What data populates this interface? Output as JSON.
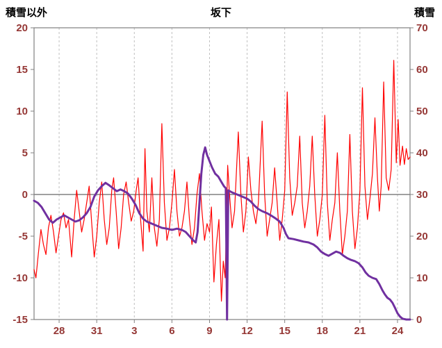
{
  "chart_data": {
    "type": "line",
    "title": "坂下",
    "left_axis": {
      "label": "積雪以外",
      "range": [
        -15,
        20
      ],
      "tick_values": [
        20,
        15,
        10,
        5,
        0,
        -5,
        -10,
        -15
      ],
      "ticks": [
        "20",
        "15",
        "10",
        "5",
        "0",
        "-5",
        "-10",
        "-15"
      ]
    },
    "right_axis": {
      "label": "積雪",
      "range": [
        0,
        70
      ],
      "tick_values": [
        70,
        60,
        50,
        40,
        30,
        20,
        10,
        0
      ],
      "ticks": [
        "70",
        "60",
        "50",
        "40",
        "30",
        "20",
        "10",
        "0"
      ]
    },
    "x_axis": {
      "range": [
        0,
        30
      ],
      "tick_values": [
        2,
        5,
        8,
        11,
        14,
        17,
        20,
        23,
        26,
        29
      ],
      "tick_labels": [
        "28",
        "31",
        "3",
        "6",
        "9",
        "12",
        "15",
        "18",
        "21",
        "24"
      ],
      "gridlines": "dashed-vertical"
    },
    "colors": {
      "tick_label": "#953735",
      "grid": "#BFBFBF",
      "axis_line": "#808080",
      "zero_line": "#808080",
      "background": "#FFFFFF"
    },
    "series": [
      {
        "name": "red-line",
        "axis": "left",
        "color": "#FF0000",
        "stroke_width": 1.2,
        "points": [
          [
            0,
            -9
          ],
          [
            0.15,
            -10
          ],
          [
            0.35,
            -7
          ],
          [
            0.55,
            -4.2
          ],
          [
            0.75,
            -6
          ],
          [
            0.95,
            -7.2
          ],
          [
            1.15,
            -4
          ],
          [
            1.35,
            -2.5
          ],
          [
            1.55,
            -4.5
          ],
          [
            1.75,
            -7
          ],
          [
            1.95,
            -5
          ],
          [
            2.15,
            -3
          ],
          [
            2.35,
            -2.2
          ],
          [
            2.55,
            -4
          ],
          [
            2.75,
            -3
          ],
          [
            3.0,
            -7.5
          ],
          [
            3.2,
            -3
          ],
          [
            3.4,
            0.5
          ],
          [
            3.6,
            -2
          ],
          [
            3.8,
            -4.5
          ],
          [
            4.0,
            -3
          ],
          [
            4.2,
            -1
          ],
          [
            4.4,
            1
          ],
          [
            4.6,
            -3.5
          ],
          [
            4.8,
            -7.5
          ],
          [
            5.0,
            -5
          ],
          [
            5.2,
            -1
          ],
          [
            5.4,
            1.5
          ],
          [
            5.6,
            -3
          ],
          [
            5.8,
            -6
          ],
          [
            6.0,
            -4
          ],
          [
            6.2,
            0.5
          ],
          [
            6.35,
            2
          ],
          [
            6.55,
            -2
          ],
          [
            6.75,
            -6.5
          ],
          [
            6.95,
            -4
          ],
          [
            7.15,
            0
          ],
          [
            7.35,
            1.5
          ],
          [
            7.55,
            -1
          ],
          [
            7.75,
            -3.2
          ],
          [
            7.95,
            -2
          ],
          [
            8.15,
            0.5
          ],
          [
            8.3,
            2
          ],
          [
            8.5,
            -3
          ],
          [
            8.7,
            -6.8
          ],
          [
            8.85,
            5.5
          ],
          [
            9.0,
            -2
          ],
          [
            9.2,
            -4.5
          ],
          [
            9.4,
            2
          ],
          [
            9.6,
            -4
          ],
          [
            9.8,
            -6.2
          ],
          [
            10.0,
            -3
          ],
          [
            10.2,
            8.5
          ],
          [
            10.4,
            -1
          ],
          [
            10.6,
            -5.5
          ],
          [
            10.8,
            -4
          ],
          [
            11.0,
            -1
          ],
          [
            11.2,
            3
          ],
          [
            11.4,
            -2
          ],
          [
            11.6,
            -5
          ],
          [
            11.8,
            -4
          ],
          [
            12.0,
            -2
          ],
          [
            12.2,
            1.5
          ],
          [
            12.4,
            -3
          ],
          [
            12.6,
            -6
          ],
          [
            12.8,
            -4
          ],
          [
            13.0,
            0
          ],
          [
            13.2,
            2.5
          ],
          [
            13.4,
            -2
          ],
          [
            13.6,
            -5.5
          ],
          [
            13.8,
            -3.5
          ],
          [
            14.0,
            -4.5
          ],
          [
            14.15,
            -1.5
          ],
          [
            14.35,
            -10.5
          ],
          [
            14.55,
            -6
          ],
          [
            14.75,
            -3
          ],
          [
            14.95,
            -12.8
          ],
          [
            15.1,
            -8
          ],
          [
            15.25,
            -10
          ],
          [
            15.45,
            3.5
          ],
          [
            15.6,
            0
          ],
          [
            15.8,
            -4
          ],
          [
            16.0,
            -2
          ],
          [
            16.3,
            7.5
          ],
          [
            16.5,
            0
          ],
          [
            16.7,
            -4.5
          ],
          [
            16.9,
            -2
          ],
          [
            17.1,
            4.5
          ],
          [
            17.3,
            0.5
          ],
          [
            17.5,
            -2
          ],
          [
            17.7,
            -3.5
          ],
          [
            17.9,
            -1
          ],
          [
            18.2,
            8.8
          ],
          [
            18.4,
            0
          ],
          [
            18.6,
            -5
          ],
          [
            18.8,
            -3
          ],
          [
            19.0,
            -1
          ],
          [
            19.2,
            3.2
          ],
          [
            19.4,
            -1
          ],
          [
            19.6,
            -5.5
          ],
          [
            19.8,
            -3
          ],
          [
            20.0,
            0.5
          ],
          [
            20.2,
            12.3
          ],
          [
            20.4,
            2
          ],
          [
            20.6,
            -2.5
          ],
          [
            20.8,
            -1
          ],
          [
            21.0,
            1
          ],
          [
            21.2,
            7
          ],
          [
            21.4,
            -1
          ],
          [
            21.6,
            -4
          ],
          [
            21.8,
            -2
          ],
          [
            22.0,
            1
          ],
          [
            22.2,
            7
          ],
          [
            22.4,
            0
          ],
          [
            22.6,
            -5
          ],
          [
            22.8,
            -3
          ],
          [
            23.0,
            0
          ],
          [
            23.2,
            9.5
          ],
          [
            23.4,
            -1
          ],
          [
            23.6,
            -5.5
          ],
          [
            23.8,
            -3
          ],
          [
            24.0,
            -1
          ],
          [
            24.2,
            5
          ],
          [
            24.4,
            -2
          ],
          [
            24.6,
            -7.2
          ],
          [
            24.8,
            -5
          ],
          [
            25.0,
            -2
          ],
          [
            25.2,
            7.2
          ],
          [
            25.4,
            -2
          ],
          [
            25.6,
            -6.5
          ],
          [
            25.8,
            -4
          ],
          [
            26.0,
            0.5
          ],
          [
            26.2,
            12.8
          ],
          [
            26.4,
            1
          ],
          [
            26.6,
            -3
          ],
          [
            26.8,
            -0.5
          ],
          [
            27.0,
            2.5
          ],
          [
            27.2,
            9.2
          ],
          [
            27.4,
            2
          ],
          [
            27.55,
            -2
          ],
          [
            27.7,
            1
          ],
          [
            27.9,
            13.5
          ],
          [
            28.1,
            2
          ],
          [
            28.3,
            0.5
          ],
          [
            28.5,
            3
          ],
          [
            28.7,
            16.1
          ],
          [
            28.9,
            3.8
          ],
          [
            29.05,
            9
          ],
          [
            29.2,
            3.5
          ],
          [
            29.4,
            5.8
          ],
          [
            29.55,
            3.6
          ],
          [
            29.7,
            5.5
          ],
          [
            29.85,
            4.2
          ],
          [
            30,
            4.5
          ]
        ]
      },
      {
        "name": "purple-line",
        "axis": "right",
        "color": "#7030A0",
        "stroke_width": 3,
        "points": [
          [
            0,
            28.5
          ],
          [
            0.3,
            28
          ],
          [
            0.6,
            27
          ],
          [
            0.9,
            25.5
          ],
          [
            1.2,
            24
          ],
          [
            1.5,
            23.2
          ],
          [
            1.8,
            24
          ],
          [
            2.1,
            24.5
          ],
          [
            2.4,
            25
          ],
          [
            2.7,
            24.5
          ],
          [
            3.0,
            24
          ],
          [
            3.3,
            23.5
          ],
          [
            3.6,
            23.8
          ],
          [
            3.9,
            24.5
          ],
          [
            4.2,
            25.5
          ],
          [
            4.5,
            27
          ],
          [
            4.8,
            29.5
          ],
          [
            5.1,
            31
          ],
          [
            5.4,
            32
          ],
          [
            5.7,
            32.8
          ],
          [
            6.0,
            32.2
          ],
          [
            6.3,
            31.5
          ],
          [
            6.6,
            30.8
          ],
          [
            6.9,
            31.2
          ],
          [
            7.2,
            30.8
          ],
          [
            7.5,
            30.2
          ],
          [
            7.8,
            29
          ],
          [
            8.1,
            27.5
          ],
          [
            8.4,
            25.5
          ],
          [
            8.7,
            24.2
          ],
          [
            9.0,
            23.5
          ],
          [
            9.4,
            23
          ],
          [
            9.8,
            22.5
          ],
          [
            10.2,
            22
          ],
          [
            10.6,
            21.8
          ],
          [
            11.0,
            21.5
          ],
          [
            11.4,
            21.8
          ],
          [
            11.8,
            21.5
          ],
          [
            12.1,
            21
          ],
          [
            12.4,
            20
          ],
          [
            12.7,
            19
          ],
          [
            12.9,
            18.5
          ],
          [
            13.05,
            21
          ],
          [
            13.2,
            28
          ],
          [
            13.35,
            35
          ],
          [
            13.5,
            39.5
          ],
          [
            13.65,
            41.3
          ],
          [
            13.8,
            39.5
          ],
          [
            14.0,
            38
          ],
          [
            14.2,
            36.5
          ],
          [
            14.45,
            35
          ],
          [
            14.7,
            34.3
          ],
          [
            14.95,
            33
          ],
          [
            15.15,
            32
          ],
          [
            15.3,
            31.5
          ],
          [
            15.4,
            0
          ],
          [
            15.5,
            31
          ],
          [
            15.8,
            30.5
          ],
          [
            16.2,
            30
          ],
          [
            16.6,
            29.5
          ],
          [
            17.0,
            29
          ],
          [
            17.3,
            28.3
          ],
          [
            17.6,
            27.3
          ],
          [
            17.9,
            26.5
          ],
          [
            18.2,
            26
          ],
          [
            18.6,
            25.5
          ],
          [
            19.0,
            24.8
          ],
          [
            19.3,
            24.2
          ],
          [
            19.6,
            23.5
          ],
          [
            19.9,
            22
          ],
          [
            20.1,
            20.5
          ],
          [
            20.3,
            19.5
          ],
          [
            20.7,
            19.3
          ],
          [
            21.1,
            19
          ],
          [
            21.5,
            18.7
          ],
          [
            21.9,
            18.5
          ],
          [
            22.3,
            18
          ],
          [
            22.6,
            17.3
          ],
          [
            22.9,
            16.3
          ],
          [
            23.2,
            15.7
          ],
          [
            23.5,
            15.3
          ],
          [
            23.8,
            15.8
          ],
          [
            24.1,
            16.3
          ],
          [
            24.4,
            16
          ],
          [
            24.7,
            15.3
          ],
          [
            25.0,
            14.7
          ],
          [
            25.3,
            14.3
          ],
          [
            25.6,
            14
          ],
          [
            25.9,
            13.5
          ],
          [
            26.2,
            12.5
          ],
          [
            26.45,
            11.3
          ],
          [
            26.7,
            10.5
          ],
          [
            27.0,
            10
          ],
          [
            27.3,
            9.7
          ],
          [
            27.55,
            8.5
          ],
          [
            27.8,
            7
          ],
          [
            28.0,
            6
          ],
          [
            28.2,
            5.2
          ],
          [
            28.4,
            4.8
          ],
          [
            28.6,
            4
          ],
          [
            28.8,
            2.8
          ],
          [
            29.0,
            1.5
          ],
          [
            29.2,
            0.7
          ],
          [
            29.4,
            0.2
          ],
          [
            29.7,
            0
          ],
          [
            30,
            0
          ]
        ]
      }
    ]
  }
}
